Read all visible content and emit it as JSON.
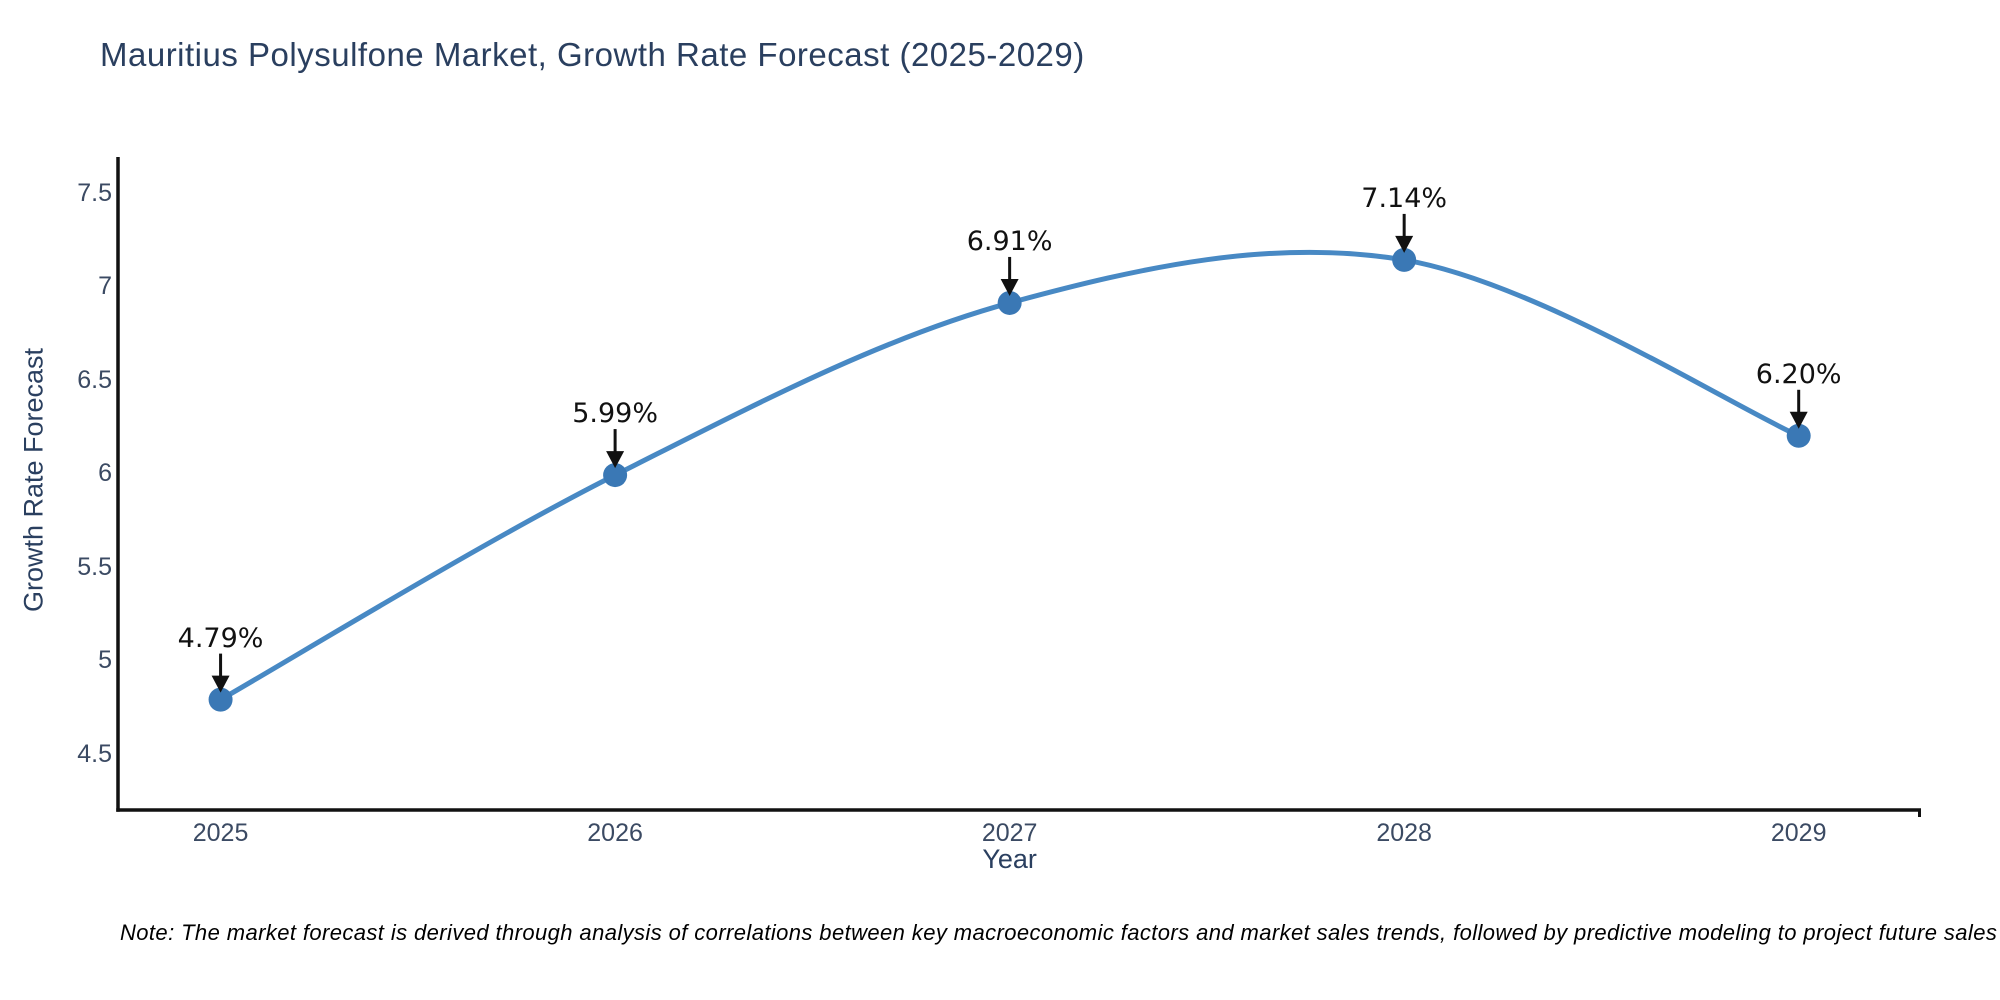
{
  "title": "Mauritius Polysulfone Market, Growth Rate Forecast (2025-2029)",
  "note": "Note: The market forecast is derived through analysis of correlations between key macroeconomic factors and market sales trends, followed by predictive modeling to project future sales",
  "chart_data": {
    "type": "line",
    "title": "Mauritius Polysulfone Market, Growth Rate Forecast (2025-2029)",
    "xlabel": "Year",
    "ylabel": "Growth Rate Forecast",
    "x": [
      2025,
      2026,
      2027,
      2028,
      2029
    ],
    "x_tick_labels": [
      "2025",
      "2026",
      "2027",
      "2028",
      "2029"
    ],
    "series": [
      {
        "name": "Growth Rate Forecast",
        "values": [
          4.79,
          5.99,
          6.91,
          7.14,
          6.2
        ]
      }
    ],
    "point_labels": [
      "4.79%",
      "5.99%",
      "6.91%",
      "7.14%",
      "6.20%"
    ],
    "ytick_values": [
      7.5,
      7,
      6.5,
      6,
      5.5,
      5,
      4.5
    ],
    "ytick_labels": [
      "7.5",
      "7",
      "6.5",
      "6",
      "5.5",
      "5",
      "4.5"
    ],
    "ylim": [
      4.2,
      7.69
    ],
    "xlim": [
      2024.74,
      2029.31
    ],
    "grid": false,
    "legend": "none",
    "smooth": true,
    "colors": {
      "line": "#4889c4",
      "marker": "#3a78b5",
      "axis": "#111111",
      "arrow": "#111111",
      "title_text": "#2a3f5f",
      "tick_text": "#3b4a63",
      "annotation_text": "#111111"
    }
  }
}
